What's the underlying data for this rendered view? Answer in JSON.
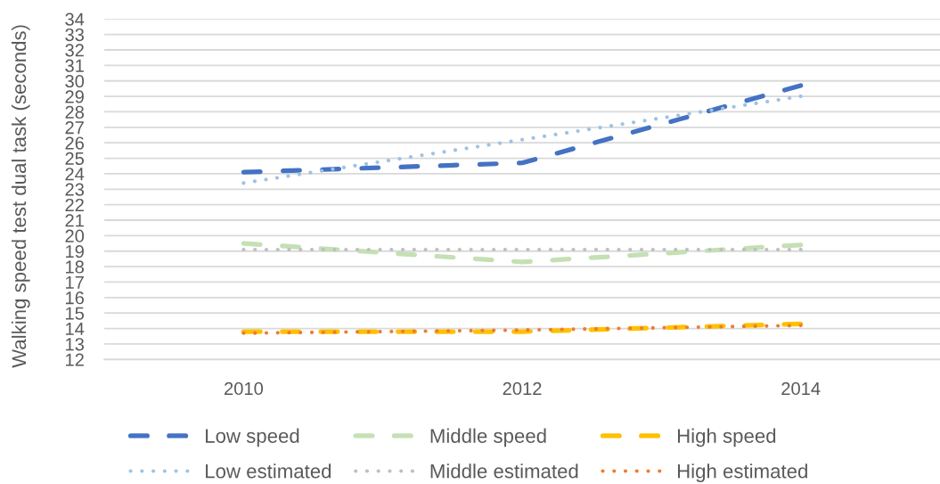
{
  "chart_data": {
    "type": "line",
    "ylabel": "Walking speed test dual task (seconds)",
    "x": [
      2010,
      2012,
      2014
    ],
    "xlim": [
      2009,
      2015
    ],
    "xticks": [
      2010,
      2012,
      2014
    ],
    "ylim": [
      12,
      34
    ],
    "yticks": [
      12,
      13,
      14,
      15,
      16,
      17,
      18,
      19,
      20,
      21,
      22,
      23,
      24,
      25,
      26,
      27,
      28,
      29,
      30,
      31,
      32,
      33,
      34
    ],
    "grid": "y",
    "legend": "bottom",
    "series": [
      {
        "name": "Low speed",
        "color": "#4472c4",
        "line_style": "dashed",
        "values": [
          24.1,
          24.7,
          29.7
        ]
      },
      {
        "name": "Middle speed",
        "color": "#c5e0b4",
        "line_style": "dashed",
        "values": [
          19.5,
          18.3,
          19.4
        ]
      },
      {
        "name": "High speed",
        "color": "#ffc000",
        "line_style": "dashed",
        "values": [
          13.8,
          13.8,
          14.3
        ]
      },
      {
        "name": "Low estimated",
        "color": "#9dc3e6",
        "line_style": "dotted",
        "values": [
          23.4,
          26.2,
          29.0
        ]
      },
      {
        "name": "Middle estimated",
        "color": "#bfbfbf",
        "line_style": "dotted",
        "values": [
          19.1,
          19.1,
          19.1
        ]
      },
      {
        "name": "High estimated",
        "color": "#ed7d31",
        "line_style": "dotted",
        "values": [
          13.7,
          13.9,
          14.2
        ]
      }
    ]
  }
}
